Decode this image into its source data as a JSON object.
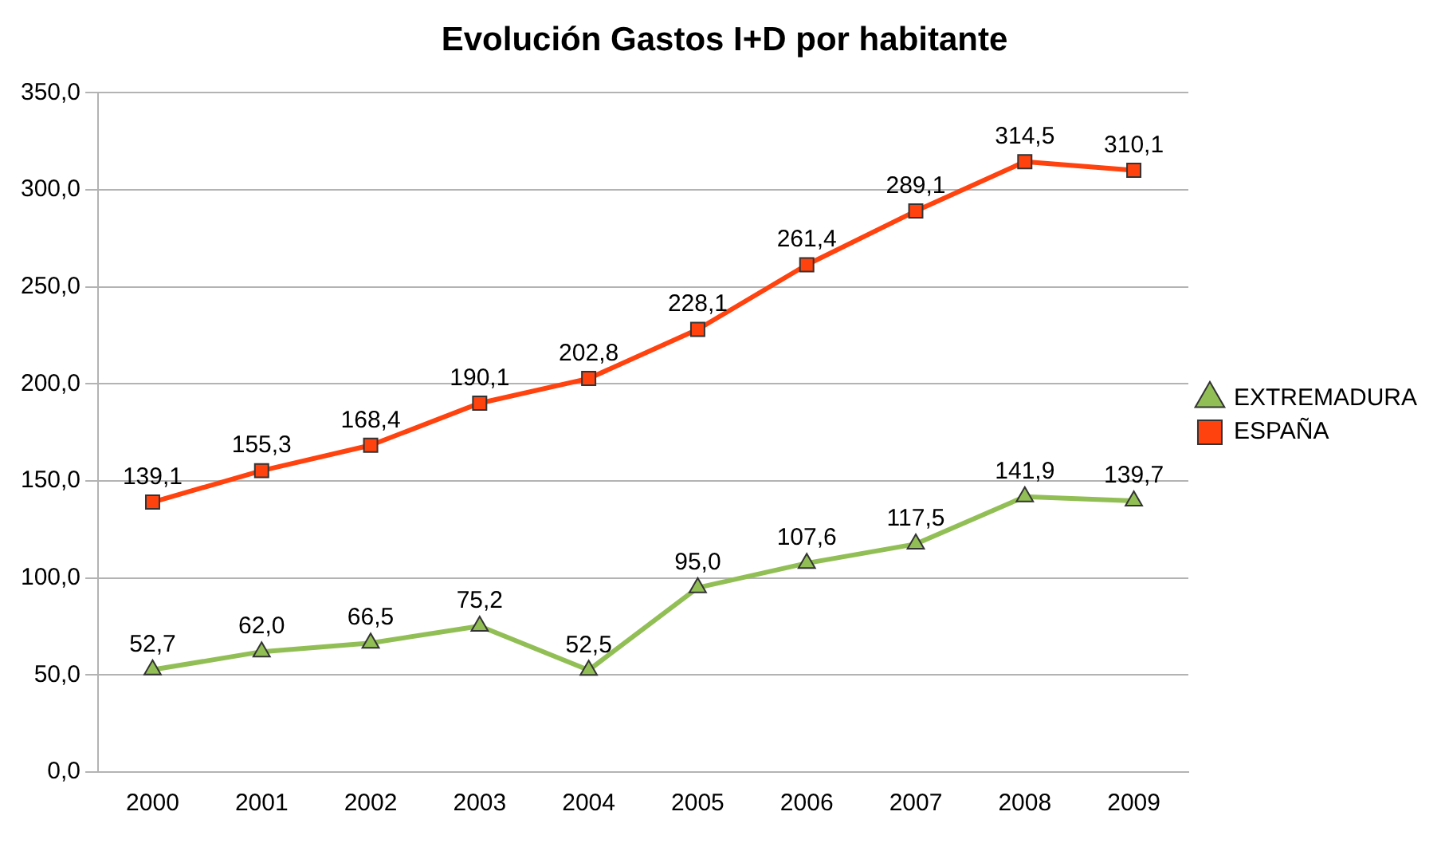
{
  "chart_data": {
    "type": "line",
    "title": "Evolución Gastos I+D por habitante",
    "categories": [
      "2000",
      "2001",
      "2002",
      "2003",
      "2004",
      "2005",
      "2006",
      "2007",
      "2008",
      "2009"
    ],
    "series": [
      {
        "name": "EXTREMADURA",
        "color": "#92bf55",
        "values": [
          52.7,
          62.0,
          66.5,
          75.2,
          52.5,
          95.0,
          107.6,
          117.5,
          141.9,
          139.7
        ],
        "marker": "triangle",
        "value_labels": [
          "52,7",
          "62,0",
          "66,5",
          "75,2",
          "52,5",
          "95,0",
          "107,6",
          "117,5",
          "141,9",
          "139,7"
        ]
      },
      {
        "name": "ESPAÑA",
        "color": "#ff420e",
        "values": [
          139.1,
          155.3,
          168.4,
          190.1,
          202.8,
          228.1,
          261.4,
          289.1,
          314.5,
          310.1
        ],
        "marker": "square",
        "value_labels": [
          "139,1",
          "155,3",
          "168,4",
          "190,1",
          "202,8",
          "228,1",
          "261,4",
          "289,1",
          "314,5",
          "310,1"
        ]
      }
    ],
    "ylim": [
      0,
      350
    ],
    "yticks": [
      {
        "value": 0,
        "label": "0,0"
      },
      {
        "value": 50,
        "label": "50,0"
      },
      {
        "value": 100,
        "label": "100,0"
      },
      {
        "value": 150,
        "label": "150,0"
      },
      {
        "value": 200,
        "label": "200,0"
      },
      {
        "value": 250,
        "label": "250,0"
      },
      {
        "value": 300,
        "label": "300,0"
      },
      {
        "value": 350,
        "label": "350,0"
      }
    ],
    "grid": "y",
    "legend": "right",
    "line_style": "solid"
  }
}
